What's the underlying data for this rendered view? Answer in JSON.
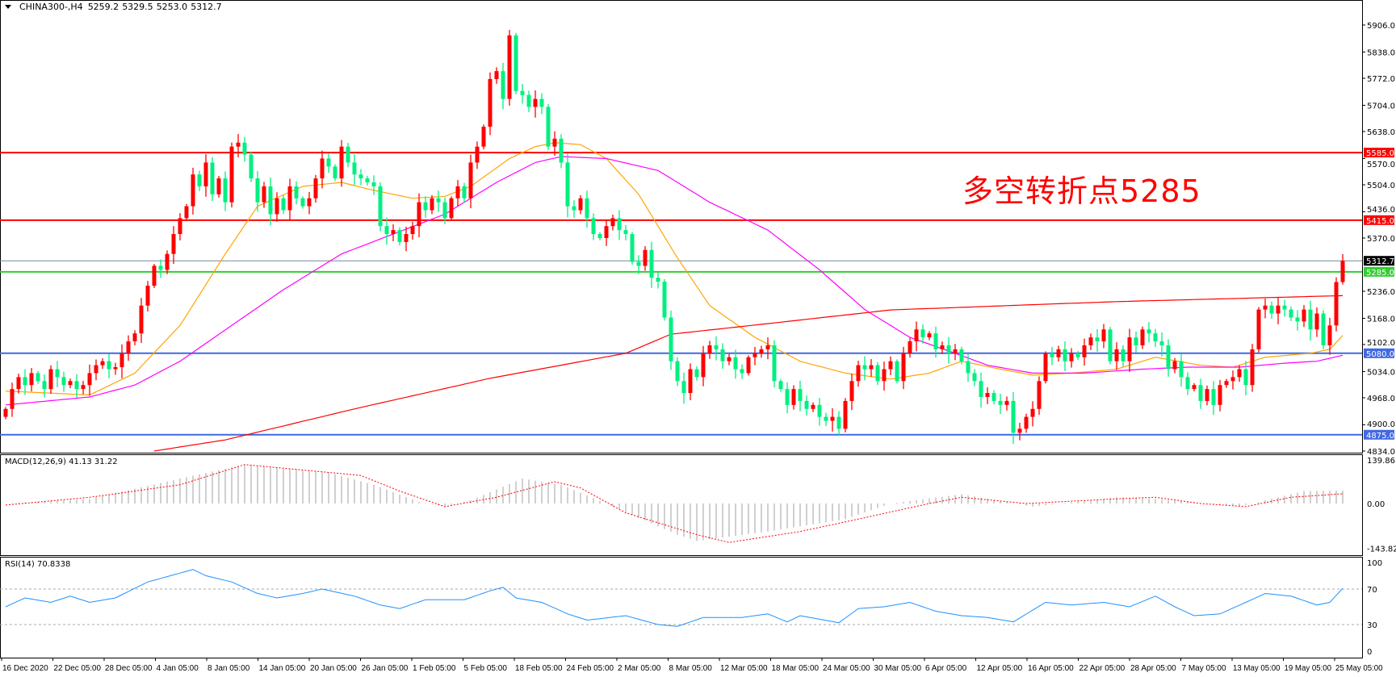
{
  "header": {
    "symbol": "CHINA300-,H4",
    "open": "5259.2",
    "high": "5329.5",
    "low": "5253.0",
    "close": "5312.7"
  },
  "annotation": {
    "text": "多空转折点5285",
    "color": "#ff0000"
  },
  "colors": {
    "bull": "#ff0000",
    "bear": "#00f080",
    "ma_fast": "#ffa500",
    "ma_mid": "#ff00ff",
    "ma_slow": "#ff0000",
    "macd_hist": "#a0a0a0",
    "macd_signal": "#ff0000",
    "rsi": "#1e90ff"
  },
  "chart_data": [
    {
      "type": "candlestick",
      "price_range": [
        4834,
        5906
      ],
      "price_ticks": [
        "5906.0",
        "5838.0",
        "5772.0",
        "5704.0",
        "5638.0",
        "5570.0",
        "5504.0",
        "5436.0",
        "5370.0",
        "5236.0",
        "5168.0",
        "5102.0",
        "5034.0",
        "4968.0",
        "4900.0",
        "4834.0"
      ],
      "time_labels": [
        "16 Dec 2020",
        "22 Dec 05:00",
        "28 Dec 05:00",
        "4 Jan 05:00",
        "8 Jan 05:00",
        "14 Jan 05:00",
        "20 Jan 05:00",
        "26 Jan 05:00",
        "1 Feb 05:00",
        "5 Feb 05:00",
        "18 Feb 05:00",
        "24 Feb 05:00",
        "2 Mar 05:00",
        "8 Mar 05:00",
        "12 Mar 05:00",
        "18 Mar 05:00",
        "24 Mar 05:00",
        "30 Mar 05:00",
        "6 Apr 05:00",
        "12 Apr 05:00",
        "16 Apr 05:00",
        "22 Apr 05:00",
        "28 Apr 05:00",
        "7 May 05:00",
        "13 May 05:00",
        "19 May 05:00",
        "25 May 05:00"
      ],
      "closes": [
        4940,
        4990,
        5020,
        5000,
        5030,
        5010,
        4990,
        5040,
        5020,
        5000,
        5010,
        4990,
        5000,
        5030,
        5050,
        5060,
        5040,
        5045,
        5080,
        5110,
        5130,
        5200,
        5250,
        5300,
        5290,
        5330,
        5380,
        5420,
        5450,
        5530,
        5500,
        5560,
        5480,
        5520,
        5460,
        5600,
        5610,
        5580,
        5520,
        5460,
        5500,
        5430,
        5470,
        5440,
        5500,
        5470,
        5450,
        5470,
        5520,
        5570,
        5550,
        5520,
        5600,
        5560,
        5530,
        5520,
        5510,
        5500,
        5400,
        5380,
        5390,
        5360,
        5380,
        5400,
        5460,
        5440,
        5470,
        5460,
        5420,
        5470,
        5500,
        5470,
        5560,
        5600,
        5650,
        5770,
        5790,
        5720,
        5880,
        5740,
        5730,
        5700,
        5720,
        5700,
        5600,
        5620,
        5560,
        5450,
        5440,
        5470,
        5420,
        5380,
        5370,
        5400,
        5420,
        5390,
        5380,
        5310,
        5300,
        5340,
        5270,
        5260,
        5170,
        5060,
        5010,
        4980,
        5040,
        5020,
        5080,
        5100,
        5090,
        5060,
        5070,
        5040,
        5030,
        5070,
        5080,
        5090,
        5100,
        5010,
        4990,
        4950,
        4990,
        4960,
        4940,
        4950,
        4920,
        4910,
        4920,
        4890,
        4960,
        5010,
        5050,
        5040,
        5050,
        5010,
        5040,
        5060,
        5010,
        5080,
        5110,
        5140,
        5120,
        5130,
        5090,
        5100,
        5080,
        5090,
        5060,
        5030,
        5010,
        4970,
        4980,
        4960,
        4950,
        4960,
        4880,
        4890,
        4920,
        4940,
        5010,
        5080,
        5070,
        5090,
        5060,
        5080,
        5070,
        5100,
        5120,
        5110,
        5140,
        5060,
        5090,
        5060,
        5120,
        5100,
        5140,
        5130,
        5110,
        5100,
        5040,
        5060,
        5020,
        4990,
        5000,
        4960,
        4990,
        4950,
        5000,
        5010,
        5020,
        5040,
        5000,
        5090,
        5190,
        5200,
        5180,
        5200,
        5190,
        5170,
        5160,
        5190,
        5140,
        5180,
        5100,
        5150,
        5259.2,
        5312.7
      ],
      "last_bar": {
        "open": 5259.2,
        "high": 5329.5,
        "low": 5253.0,
        "close": 5312.7
      },
      "moving_averages": [
        {
          "color_key": "ma_fast",
          "points": [
            [
              0,
              4985
            ],
            [
              13,
              4975
            ],
            [
              20,
              5030
            ],
            [
              27,
              5150
            ],
            [
              34,
              5330
            ],
            [
              39,
              5450
            ],
            [
              46,
              5500
            ],
            [
              52,
              5510
            ],
            [
              57,
              5490
            ],
            [
              63,
              5470
            ],
            [
              68,
              5475
            ],
            [
              72,
              5500
            ],
            [
              78,
              5570
            ],
            [
              82,
              5600
            ],
            [
              85,
              5610
            ],
            [
              89,
              5605
            ],
            [
              93,
              5570
            ],
            [
              98,
              5480
            ],
            [
              104,
              5320
            ],
            [
              109,
              5200
            ],
            [
              116,
              5120
            ],
            [
              123,
              5060
            ],
            [
              130,
              5030
            ],
            [
              137,
              5015
            ],
            [
              143,
              5030
            ],
            [
              148,
              5060
            ],
            [
              154,
              5040
            ],
            [
              159,
              5025
            ],
            [
              165,
              5030
            ],
            [
              172,
              5040
            ],
            [
              178,
              5070
            ],
            [
              185,
              5050
            ],
            [
              190,
              5045
            ],
            [
              195,
              5070
            ],
            [
              202,
              5080
            ],
            [
              205,
              5090
            ],
            [
              207,
              5125
            ]
          ]
        },
        {
          "color_key": "ma_mid",
          "points": [
            [
              0,
              4950
            ],
            [
              13,
              4970
            ],
            [
              20,
              5000
            ],
            [
              27,
              5060
            ],
            [
              35,
              5150
            ],
            [
              43,
              5240
            ],
            [
              52,
              5330
            ],
            [
              60,
              5380
            ],
            [
              68,
              5430
            ],
            [
              76,
              5510
            ],
            [
              82,
              5560
            ],
            [
              86,
              5575
            ],
            [
              93,
              5570
            ],
            [
              101,
              5540
            ],
            [
              109,
              5460
            ],
            [
              118,
              5390
            ],
            [
              126,
              5290
            ],
            [
              133,
              5190
            ],
            [
              140,
              5120
            ],
            [
              147,
              5080
            ],
            [
              152,
              5050
            ],
            [
              159,
              5030
            ],
            [
              167,
              5030
            ],
            [
              176,
              5040
            ],
            [
              183,
              5045
            ],
            [
              191,
              5045
            ],
            [
              198,
              5055
            ],
            [
              203,
              5060
            ],
            [
              207,
              5075
            ]
          ]
        },
        {
          "color_key": "ma_slow",
          "points": [
            [
              23,
              4834
            ],
            [
              34,
              4862
            ],
            [
              54,
              4940
            ],
            [
              75,
              5017
            ],
            [
              96,
              5080
            ],
            [
              103,
              5128
            ],
            [
              116,
              5151
            ],
            [
              137,
              5189
            ],
            [
              172,
              5210
            ],
            [
              207,
              5225
            ]
          ]
        }
      ],
      "levels": [
        {
          "value": 5585.0,
          "label": "5585.0",
          "color": "#ff0000"
        },
        {
          "value": 5415.0,
          "label": "5415.0",
          "color": "#ff0000"
        },
        {
          "value": 5285.0,
          "label": "5285.0",
          "color": "#32cd32"
        },
        {
          "value": 5080.0,
          "label": "5080.0",
          "color": "#4169e1"
        },
        {
          "value": 4875.0,
          "label": "4875.0",
          "color": "#4169e1"
        }
      ],
      "current_price": {
        "value": 5312.7,
        "label": "5312.7",
        "color": "#000000",
        "line_color": "#778899"
      }
    },
    {
      "type": "macd",
      "title": "MACD(12,26,9) 41.13 31.22",
      "range": [
        -143.82,
        139.86
      ],
      "ticks": [
        "139.86",
        "0.00",
        "-143.82"
      ],
      "histogram": [
        [
          0,
          0
        ],
        [
          13,
          15
        ],
        [
          27,
          80
        ],
        [
          37,
          125
        ],
        [
          50,
          100
        ],
        [
          57,
          60
        ],
        [
          64,
          5
        ],
        [
          68,
          -8
        ],
        [
          72,
          10
        ],
        [
          80,
          80
        ],
        [
          86,
          60
        ],
        [
          93,
          0
        ],
        [
          104,
          -100
        ],
        [
          107,
          -120
        ],
        [
          118,
          -90
        ],
        [
          130,
          -50
        ],
        [
          137,
          0
        ],
        [
          148,
          30
        ],
        [
          159,
          -10
        ],
        [
          172,
          20
        ],
        [
          178,
          15
        ],
        [
          191,
          -10
        ],
        [
          201,
          40
        ],
        [
          207,
          41.13
        ]
      ],
      "signal": [
        [
          0,
          -5
        ],
        [
          13,
          20
        ],
        [
          27,
          60
        ],
        [
          37,
          125
        ],
        [
          55,
          90
        ],
        [
          61,
          40
        ],
        [
          68,
          -10
        ],
        [
          76,
          20
        ],
        [
          85,
          70
        ],
        [
          89,
          50
        ],
        [
          96,
          -30
        ],
        [
          107,
          -100
        ],
        [
          112,
          -125
        ],
        [
          123,
          -90
        ],
        [
          132,
          -50
        ],
        [
          143,
          0
        ],
        [
          148,
          20
        ],
        [
          158,
          0
        ],
        [
          172,
          15
        ],
        [
          178,
          20
        ],
        [
          185,
          0
        ],
        [
          192,
          -10
        ],
        [
          199,
          20
        ],
        [
          207,
          31.22
        ]
      ]
    },
    {
      "type": "line",
      "title": "RSI(14) 70.8338",
      "range": [
        0,
        100
      ],
      "ticks": [
        "100",
        "70",
        "30",
        "0"
      ],
      "levels": [
        70,
        30
      ],
      "values": [
        [
          0,
          50
        ],
        [
          3,
          60
        ],
        [
          7,
          55
        ],
        [
          10,
          62
        ],
        [
          13,
          55
        ],
        [
          17,
          60
        ],
        [
          22,
          78
        ],
        [
          27,
          88
        ],
        [
          29,
          92
        ],
        [
          31,
          85
        ],
        [
          35,
          78
        ],
        [
          39,
          65
        ],
        [
          42,
          60
        ],
        [
          46,
          65
        ],
        [
          49,
          70
        ],
        [
          54,
          62
        ],
        [
          58,
          52
        ],
        [
          61,
          48
        ],
        [
          65,
          58
        ],
        [
          71,
          58
        ],
        [
          75,
          68
        ],
        [
          77,
          72
        ],
        [
          79,
          60
        ],
        [
          83,
          55
        ],
        [
          87,
          42
        ],
        [
          90,
          35
        ],
        [
          96,
          40
        ],
        [
          101,
          30
        ],
        [
          104,
          28
        ],
        [
          108,
          38
        ],
        [
          114,
          38
        ],
        [
          118,
          42
        ],
        [
          121,
          33
        ],
        [
          123,
          40
        ],
        [
          129,
          32
        ],
        [
          132,
          48
        ],
        [
          136,
          50
        ],
        [
          140,
          55
        ],
        [
          144,
          45
        ],
        [
          148,
          40
        ],
        [
          152,
          38
        ],
        [
          156,
          33
        ],
        [
          161,
          55
        ],
        [
          165,
          52
        ],
        [
          170,
          55
        ],
        [
          174,
          50
        ],
        [
          178,
          62
        ],
        [
          181,
          50
        ],
        [
          184,
          40
        ],
        [
          188,
          42
        ],
        [
          192,
          55
        ],
        [
          195,
          65
        ],
        [
          199,
          62
        ],
        [
          203,
          52
        ],
        [
          205,
          55
        ],
        [
          207,
          70.8338
        ]
      ]
    }
  ]
}
